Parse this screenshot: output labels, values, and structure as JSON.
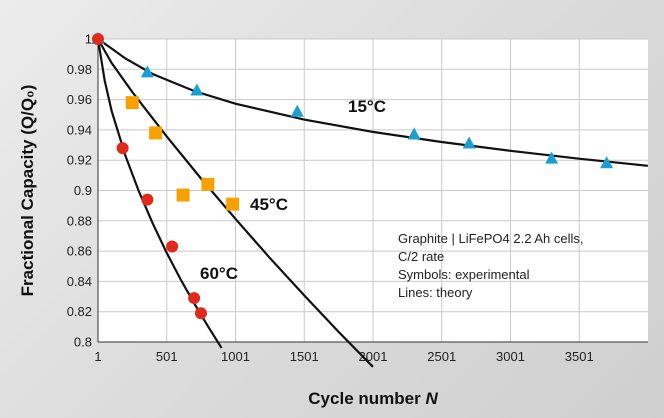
{
  "chart_data": {
    "type": "scatter",
    "xlabel": "Cycle number",
    "xlabel_var": "N",
    "ylabel": "Fractional Capacity (Q/Q₀)",
    "xlim": [
      1,
      4001
    ],
    "ylim": [
      0.8,
      1.0
    ],
    "xticks": [
      "1",
      "501",
      "1001",
      "1501",
      "2001",
      "2501",
      "3001",
      "3501"
    ],
    "yticks": [
      "1",
      "0.98",
      "0.96",
      "0.94",
      "0.92",
      "0.9",
      "0.88",
      "0.86",
      "0.84",
      "0.82",
      "0.8"
    ],
    "grid": true,
    "annotation": [
      "Graphite | LiFePO4 2.2 Ah cells,",
      "C/2 rate",
      "Symbols: experimental",
      "Lines: theory"
    ],
    "series": [
      {
        "name": "15°C",
        "color": "#1a9fd4",
        "marker": "triangle",
        "points": [
          [
            1,
            1.0
          ],
          [
            360,
            0.978
          ],
          [
            720,
            0.966
          ],
          [
            1450,
            0.952
          ],
          [
            2300,
            0.937
          ],
          [
            2700,
            0.931
          ],
          [
            3300,
            0.921
          ],
          [
            3700,
            0.918
          ]
        ],
        "theory": [
          [
            1,
            1.0
          ],
          [
            100,
            0.9937
          ],
          [
            200,
            0.9871
          ],
          [
            400,
            0.9768
          ],
          [
            700,
            0.9657
          ],
          [
            1000,
            0.9573
          ],
          [
            1500,
            0.9468
          ],
          [
            2000,
            0.9387
          ],
          [
            2500,
            0.932
          ],
          [
            3000,
            0.9262
          ],
          [
            3500,
            0.921
          ],
          [
            4000,
            0.9163
          ]
        ]
      },
      {
        "name": "45°C",
        "color": "#f5a100",
        "marker": "square",
        "points": [
          [
            250,
            0.958
          ],
          [
            420,
            0.938
          ],
          [
            620,
            0.897
          ],
          [
            800,
            0.904
          ],
          [
            980,
            0.891
          ]
        ],
        "theory": [
          [
            1,
            1.0
          ],
          [
            100,
            0.9842
          ],
          [
            250,
            0.9651
          ],
          [
            500,
            0.9358
          ],
          [
            750,
            0.9079
          ],
          [
            1000,
            0.8813
          ],
          [
            1250,
            0.8556
          ],
          [
            1500,
            0.8308
          ],
          [
            1750,
            0.8068
          ],
          [
            2000,
            0.7836
          ]
        ]
      },
      {
        "name": "60°C",
        "color": "#e02a1b",
        "marker": "circle",
        "points": [
          [
            1,
            1.0
          ],
          [
            180,
            0.928
          ],
          [
            360,
            0.894
          ],
          [
            540,
            0.863
          ],
          [
            700,
            0.829
          ],
          [
            750,
            0.819
          ]
        ],
        "theory": [
          [
            1,
            1.0
          ],
          [
            50,
            0.9725
          ],
          [
            100,
            0.9526
          ],
          [
            200,
            0.923
          ],
          [
            300,
            0.899
          ],
          [
            400,
            0.878
          ],
          [
            500,
            0.859
          ],
          [
            600,
            0.8416
          ],
          [
            700,
            0.8256
          ],
          [
            800,
            0.8104
          ],
          [
            900,
            0.796
          ]
        ]
      }
    ]
  }
}
